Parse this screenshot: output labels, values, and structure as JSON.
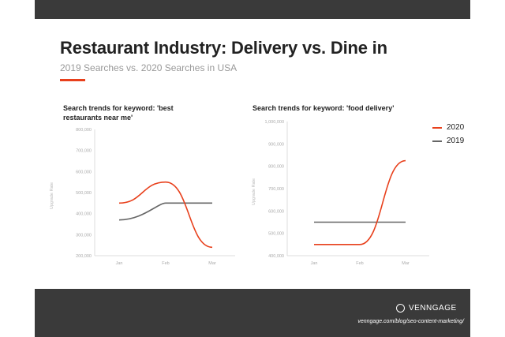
{
  "page": {
    "title": "Restaurant Industry: Delivery vs. Dine in",
    "subtitle": "2019 Searches vs. 2020 Searches in USA",
    "accent_color": "#e8401c",
    "brand": "VENNGAGE",
    "url": "venngage.com/blog/seo-content-marketing/"
  },
  "legend": [
    {
      "label": "2020",
      "color": "#e8401c"
    },
    {
      "label": "2019",
      "color": "#666666"
    }
  ],
  "chart_data": [
    {
      "type": "line",
      "title": "Search trends for keyword: 'best restaurants near me'",
      "ylabel": "Upgrade Rate",
      "categories": [
        "Jan",
        "Feb",
        "Mar"
      ],
      "ylim": [
        200000,
        800000
      ],
      "yticks": [
        "200,000",
        "300,000",
        "400,000",
        "500,000",
        "600,000",
        "700,000",
        "800,000"
      ],
      "series": [
        {
          "name": "2020",
          "values": [
            450000,
            550000,
            240000
          ],
          "color": "#e8401c"
        },
        {
          "name": "2019",
          "values": [
            370000,
            450000,
            450000
          ],
          "color": "#666666"
        }
      ]
    },
    {
      "type": "line",
      "title": "Search trends for keyword: 'food delivery'",
      "ylabel": "Upgrade Rate",
      "categories": [
        "Jan",
        "Feb",
        "Mar"
      ],
      "ylim": [
        400000,
        1000000
      ],
      "yticks": [
        "400,000",
        "500,000",
        "600,000",
        "700,000",
        "800,000",
        "900,000",
        "1,000,000"
      ],
      "series": [
        {
          "name": "2020",
          "values": [
            450000,
            450000,
            825000
          ],
          "color": "#e8401c"
        },
        {
          "name": "2019",
          "values": [
            550000,
            550000,
            550000
          ],
          "color": "#666666"
        }
      ]
    }
  ]
}
